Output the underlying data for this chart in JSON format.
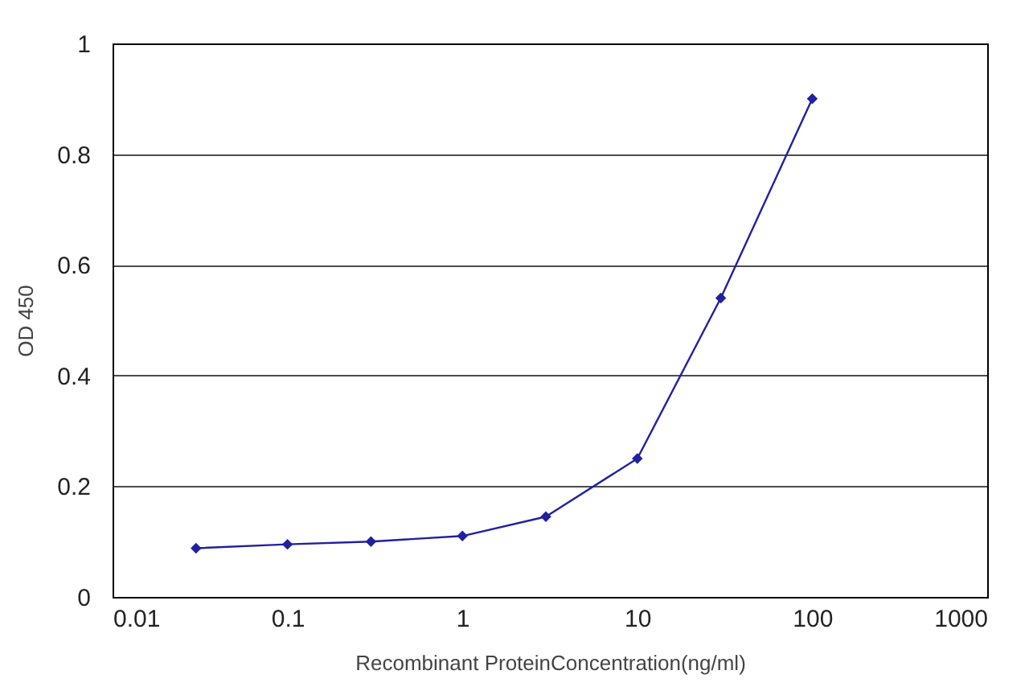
{
  "chart_data": {
    "type": "line",
    "xlabel": "Recombinant ProteinConcentration(ng/ml)",
    "ylabel": "OD 450",
    "x": [
      0.03,
      0.1,
      0.3,
      1,
      3,
      10,
      30,
      100
    ],
    "series": [
      {
        "color": "#2020a0",
        "values": [
          0.088,
          0.095,
          0.1,
          0.11,
          0.145,
          0.25,
          0.54,
          0.9
        ]
      }
    ],
    "log": "x",
    "xlim": [
      0.01,
      1000
    ],
    "xticks": [
      0.01,
      0.1,
      1,
      10,
      100,
      1000
    ],
    "ylim": [
      0,
      1
    ],
    "yticks": [
      0,
      0.2,
      0.4,
      0.6,
      0.8,
      1
    ],
    "grid": "y",
    "marker": "diamond",
    "line_style": "solid"
  }
}
